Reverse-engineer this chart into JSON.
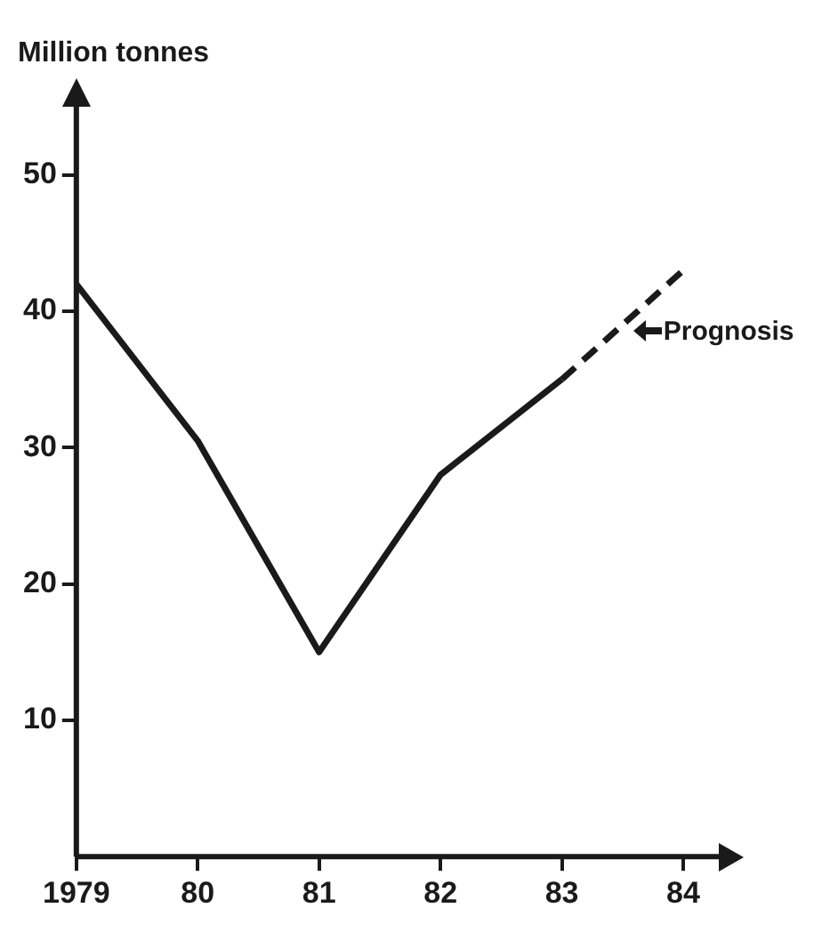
{
  "chart_data": {
    "type": "line",
    "ylabel": "Million tonnes",
    "categories": [
      "1979",
      "80",
      "81",
      "82",
      "83",
      "84"
    ],
    "series": [
      {
        "color": "#1a1a1a",
        "line_style": "solid",
        "values": [
          42,
          30.5,
          15,
          28,
          35,
          null
        ]
      },
      {
        "color": "#1a1a1a",
        "line_style": "dashed",
        "values": [
          null,
          null,
          null,
          null,
          35,
          43
        ]
      }
    ],
    "ylim": [
      0,
      55
    ],
    "yticks": [
      10,
      20,
      30,
      40,
      50
    ],
    "grid": false,
    "legend": false,
    "marker": "none",
    "annotations": [
      "Prognosis"
    ]
  }
}
